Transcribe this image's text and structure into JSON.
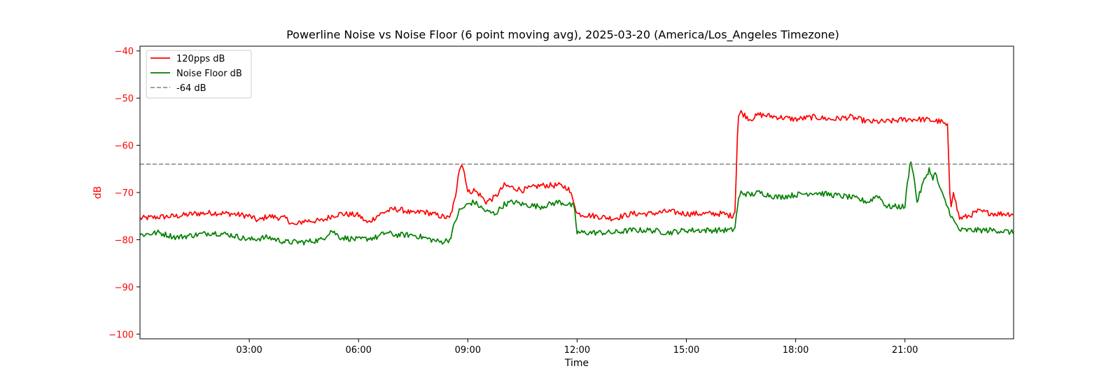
{
  "chart_data": {
    "type": "line",
    "title": "Powerline Noise vs Noise Floor (6 point moving avg), 2025-03-20 (America/Los_Angeles Timezone)",
    "xlabel": "Time",
    "ylabel": "dB",
    "ylabel_color": "#ff0000",
    "ytick_color": "#ff0000",
    "xlim": [
      "00:00",
      "23:59"
    ],
    "ylim": [
      -101,
      -39
    ],
    "x_ticks": [
      "03:00",
      "06:00",
      "09:00",
      "12:00",
      "15:00",
      "18:00",
      "21:00"
    ],
    "y_ticks": [
      -100,
      -90,
      -80,
      -70,
      -60,
      -50,
      -40
    ],
    "y_tick_labels": [
      "−100",
      "−90",
      "−80",
      "−70",
      "−60",
      "−50",
      "−40"
    ],
    "grid": false,
    "legend_position": "top-left",
    "reference_line": {
      "name": "-64 dB",
      "y": -64,
      "color": "#808080",
      "style": "dashed"
    },
    "series": [
      {
        "name": "120pps dB",
        "color": "#ff0000",
        "x": [
          "00:00",
          "00:30",
          "01:00",
          "01:30",
          "02:00",
          "02:30",
          "03:00",
          "03:15",
          "03:30",
          "04:00",
          "04:15",
          "04:30",
          "05:00",
          "05:15",
          "05:30",
          "06:00",
          "06:15",
          "06:30",
          "06:45",
          "07:00",
          "07:15",
          "07:30",
          "07:45",
          "08:00",
          "08:15",
          "08:30",
          "08:40",
          "08:45",
          "08:50",
          "08:55",
          "09:00",
          "09:10",
          "09:20",
          "09:30",
          "09:45",
          "10:00",
          "10:15",
          "10:30",
          "11:00",
          "11:30",
          "11:45",
          "11:55",
          "12:00",
          "12:30",
          "13:00",
          "13:30",
          "14:00",
          "14:30",
          "15:00",
          "15:30",
          "16:00",
          "16:15",
          "16:20",
          "16:25",
          "16:30",
          "16:45",
          "17:00",
          "17:30",
          "18:00",
          "18:30",
          "19:00",
          "19:30",
          "20:00",
          "20:30",
          "21:00",
          "21:30",
          "22:00",
          "22:10",
          "22:15",
          "22:20",
          "22:25",
          "22:30",
          "22:45",
          "23:00",
          "23:30",
          "23:59"
        ],
        "values": [
          -75.5,
          -75.2,
          -75,
          -74.5,
          -74.3,
          -74.5,
          -75,
          -76,
          -75,
          -75.5,
          -77,
          -76,
          -76,
          -75,
          -74.5,
          -74.8,
          -76.5,
          -75,
          -74,
          -73.5,
          -73.8,
          -74.5,
          -74,
          -74.5,
          -75,
          -75.5,
          -71,
          -65,
          -64,
          -66,
          -70,
          -69.5,
          -70.5,
          -72,
          -71,
          -68.5,
          -69,
          -69.5,
          -68.5,
          -68.5,
          -69,
          -72,
          -74.5,
          -75,
          -75.5,
          -74.5,
          -74.5,
          -74,
          -74.5,
          -74.5,
          -74.5,
          -75,
          -74,
          -54,
          -53,
          -54.5,
          -53.5,
          -54,
          -54.5,
          -54,
          -54.5,
          -54,
          -55,
          -55,
          -54.5,
          -54.5,
          -55,
          -56,
          -73.5,
          -69.5,
          -73,
          -75.5,
          -75,
          -74,
          -74.5,
          -74.5
        ]
      },
      {
        "name": "Noise Floor dB",
        "color": "#008000",
        "x": [
          "00:00",
          "00:30",
          "01:00",
          "01:30",
          "02:00",
          "02:30",
          "03:00",
          "03:30",
          "04:00",
          "04:30",
          "05:00",
          "05:15",
          "05:30",
          "06:00",
          "06:30",
          "06:45",
          "07:00",
          "07:30",
          "08:00",
          "08:15",
          "08:30",
          "08:40",
          "08:45",
          "09:00",
          "09:10",
          "09:30",
          "09:45",
          "10:00",
          "10:15",
          "10:30",
          "11:00",
          "11:30",
          "11:45",
          "11:55",
          "12:00",
          "12:30",
          "13:00",
          "13:30",
          "14:00",
          "14:30",
          "15:00",
          "15:30",
          "16:00",
          "16:15",
          "16:20",
          "16:25",
          "16:30",
          "16:45",
          "17:00",
          "17:30",
          "18:00",
          "18:30",
          "19:00",
          "19:30",
          "20:00",
          "20:15",
          "20:30",
          "21:00",
          "21:05",
          "21:10",
          "21:15",
          "21:20",
          "21:30",
          "21:40",
          "21:45",
          "21:50",
          "22:00",
          "22:10",
          "22:20",
          "22:30",
          "22:45",
          "23:00",
          "23:30",
          "23:59"
        ],
        "values": [
          -79,
          -78.5,
          -79.5,
          -79,
          -78.5,
          -79,
          -80,
          -79.5,
          -80.5,
          -80.5,
          -80,
          -78,
          -79.5,
          -80,
          -79.5,
          -78.5,
          -79,
          -79,
          -80,
          -80.5,
          -80,
          -76,
          -74,
          -72.5,
          -72,
          -74,
          -74.5,
          -72.5,
          -72,
          -72.5,
          -73,
          -72,
          -72.5,
          -73,
          -78.5,
          -78.5,
          -78.5,
          -78,
          -78,
          -78.5,
          -78,
          -78,
          -78,
          -78,
          -77.5,
          -72,
          -70,
          -70.5,
          -70,
          -71,
          -70.5,
          -70,
          -70.5,
          -71,
          -72,
          -70.5,
          -73,
          -73,
          -67,
          -63,
          -67,
          -72,
          -68,
          -65,
          -67,
          -66,
          -70,
          -73,
          -76,
          -78,
          -78,
          -78,
          -78,
          -78.5
        ]
      }
    ]
  }
}
